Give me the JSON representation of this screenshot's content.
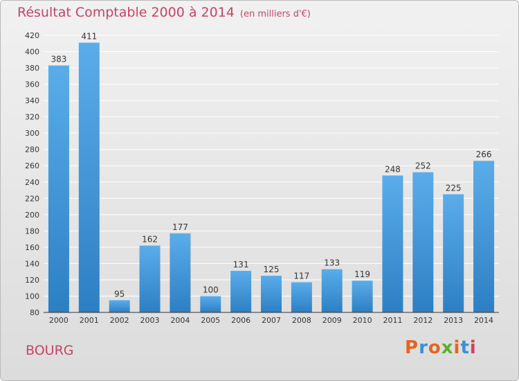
{
  "header": {
    "title": "Résultat Comptable 2000 à 2014",
    "subtitle": "(en milliers d'€)"
  },
  "footer": {
    "place": "BOURG",
    "logo": "Proxiti"
  },
  "colors": {
    "bar_top": "#5aade9",
    "bar_bottom": "#2d7fc4",
    "title": "#c9435f",
    "logo_letters": [
      "#e2661f",
      "#3b8fd6",
      "#e2661f",
      "#5fae2f",
      "#e2661f",
      "#3b8fd6",
      "#c9435f"
    ]
  },
  "chart_data": {
    "type": "bar",
    "categories": [
      "2000",
      "2001",
      "2002",
      "2003",
      "2004",
      "2005",
      "2006",
      "2007",
      "2008",
      "2009",
      "2010",
      "2011",
      "2012",
      "2013",
      "2014"
    ],
    "values": [
      383,
      411,
      95,
      162,
      177,
      100,
      131,
      125,
      117,
      133,
      119,
      248,
      252,
      225,
      266
    ],
    "ylim": [
      80,
      420
    ],
    "yticks": [
      80,
      100,
      120,
      140,
      160,
      180,
      200,
      220,
      240,
      260,
      280,
      300,
      320,
      340,
      360,
      380,
      400,
      420
    ],
    "grid": true,
    "data_labels": true
  }
}
